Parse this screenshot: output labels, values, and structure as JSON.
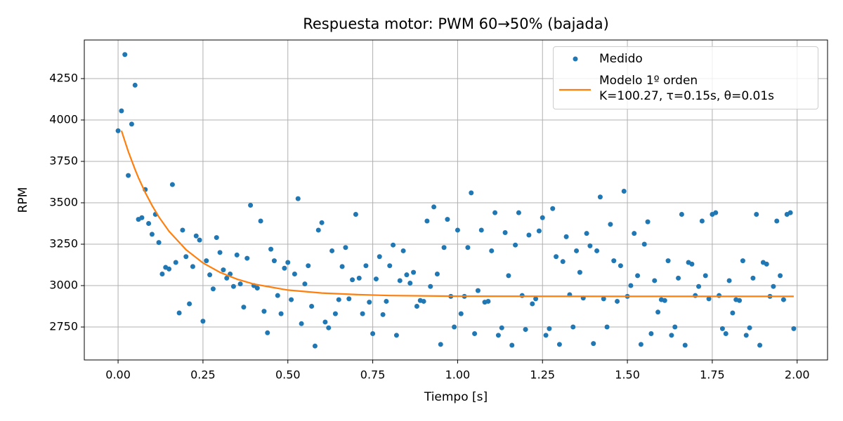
{
  "chart_data": {
    "type": "scatter",
    "title": "Respuesta motor: PWM 60→50% (bajada)",
    "x_label": "Tiempo [s]",
    "y_label": "RPM",
    "xlim": [
      -0.0995,
      2.0895
    ],
    "ylim": [
      2551,
      4483
    ],
    "xticks": [
      {
        "value": 0,
        "label": "0.00"
      },
      {
        "value": 0.25,
        "label": "0.25"
      },
      {
        "value": 0.5,
        "label": "0.50"
      },
      {
        "value": 0.75,
        "label": "0.75"
      },
      {
        "value": 1,
        "label": "1.00"
      },
      {
        "value": 1.25,
        "label": "1.25"
      },
      {
        "value": 1.5,
        "label": "1.50"
      },
      {
        "value": 1.75,
        "label": "1.75"
      },
      {
        "value": 2,
        "label": "2.00"
      }
    ],
    "yticks": [
      2750,
      3000,
      3250,
      3500,
      3750,
      4000,
      4250
    ],
    "grid": true,
    "legend": "upper right",
    "series": [
      {
        "name": "Medido",
        "type": "scatter",
        "color": "#1f77b4",
        "x": [
          0,
          0.01,
          0.02,
          0.03,
          0.04,
          0.05,
          0.06,
          0.07,
          0.08,
          0.09,
          0.1,
          0.11,
          0.12,
          0.13,
          0.14,
          0.15,
          0.16,
          0.17,
          0.18,
          0.19,
          0.2,
          0.21,
          0.22,
          0.23,
          0.24,
          0.25,
          0.26,
          0.27,
          0.28,
          0.29,
          0.3,
          0.31,
          0.32,
          0.33,
          0.34,
          0.35,
          0.36,
          0.37,
          0.38,
          0.39,
          0.4,
          0.41,
          0.42,
          0.43,
          0.44,
          0.45,
          0.46,
          0.47,
          0.48,
          0.49,
          0.5,
          0.51,
          0.52,
          0.53,
          0.54,
          0.55,
          0.56,
          0.57,
          0.58,
          0.59,
          0.6,
          0.61,
          0.62,
          0.63,
          0.64,
          0.65,
          0.66,
          0.67,
          0.68,
          0.69,
          0.7,
          0.71,
          0.72,
          0.73,
          0.74,
          0.75,
          0.76,
          0.77,
          0.78,
          0.79,
          0.8,
          0.81,
          0.82,
          0.83,
          0.84,
          0.85,
          0.86,
          0.87,
          0.88,
          0.89,
          0.9,
          0.91,
          0.92,
          0.93,
          0.94,
          0.95,
          0.96,
          0.97,
          0.98,
          0.99,
          1,
          1.01,
          1.02,
          1.03,
          1.04,
          1.05,
          1.06,
          1.07,
          1.08,
          1.09,
          1.1,
          1.11,
          1.12,
          1.13,
          1.14,
          1.15,
          1.16,
          1.17,
          1.18,
          1.19,
          1.2,
          1.21,
          1.22,
          1.23,
          1.24,
          1.25,
          1.26,
          1.27,
          1.28,
          1.29,
          1.3,
          1.31,
          1.32,
          1.33,
          1.34,
          1.35,
          1.36,
          1.37,
          1.38,
          1.39,
          1.4,
          1.41,
          1.42,
          1.43,
          1.44,
          1.45,
          1.46,
          1.47,
          1.48,
          1.49,
          1.5,
          1.51,
          1.52,
          1.53,
          1.54,
          1.55,
          1.56,
          1.57,
          1.58,
          1.59,
          1.6,
          1.61,
          1.62,
          1.63,
          1.64,
          1.65,
          1.66,
          1.67,
          1.68,
          1.69,
          1.7,
          1.71,
          1.72,
          1.73,
          1.74,
          1.75,
          1.76,
          1.77,
          1.78,
          1.79,
          1.8,
          1.81,
          1.82,
          1.83,
          1.84,
          1.85,
          1.86,
          1.87,
          1.88,
          1.89,
          1.9,
          1.91,
          1.92,
          1.93,
          1.94,
          1.95,
          1.96,
          1.97,
          1.98,
          1.99
        ],
        "values": [
          3935,
          4055,
          4395,
          3665,
          3975,
          4210,
          3400,
          3410,
          3580,
          3375,
          3310,
          3430,
          3260,
          3070,
          3110,
          3100,
          3610,
          3140,
          2835,
          3335,
          3175,
          2890,
          3115,
          3300,
          3275,
          2785,
          3150,
          3065,
          2980,
          3290,
          3200,
          3095,
          3045,
          3070,
          2995,
          3185,
          3010,
          2870,
          3165,
          3485,
          3000,
          2985,
          3390,
          2845,
          2715,
          3220,
          3150,
          2940,
          2830,
          3105,
          3140,
          2915,
          3070,
          3525,
          2770,
          3010,
          3120,
          2875,
          2635,
          3335,
          3380,
          2780,
          2745,
          3210,
          2830,
          2915,
          3115,
          3230,
          2920,
          3035,
          3430,
          3045,
          2830,
          3120,
          2900,
          2710,
          3040,
          3175,
          2825,
          2905,
          3120,
          3245,
          2700,
          3030,
          3210,
          3065,
          3015,
          3080,
          2875,
          2910,
          2905,
          3390,
          2995,
          3475,
          3070,
          2645,
          3230,
          3400,
          2935,
          2750,
          3335,
          2830,
          2935,
          3230,
          3560,
          2710,
          2970,
          3335,
          2900,
          2905,
          3210,
          3440,
          2700,
          2745,
          3320,
          3060,
          2640,
          3245,
          3440,
          2940,
          2735,
          3305,
          2890,
          2920,
          3330,
          3410,
          2700,
          2740,
          3465,
          3175,
          2645,
          3145,
          3295,
          2945,
          2750,
          3210,
          3080,
          2925,
          3315,
          3240,
          2650,
          3210,
          3535,
          2920,
          2750,
          3370,
          3150,
          2905,
          3120,
          3570,
          2935,
          3000,
          3315,
          3060,
          2645,
          3250,
          3385,
          2710,
          3030,
          2840,
          2915,
          2910,
          3150,
          2700,
          2750,
          3045,
          3430,
          2640,
          3140,
          3130,
          2940,
          2995,
          3390,
          3060,
          2920,
          3430,
          3440,
          2940,
          2740,
          2710,
          3030,
          2835,
          2915,
          2910,
          3150,
          2700,
          2745,
          3045,
          3430,
          2640,
          3140,
          3130,
          2935,
          2995,
          3390,
          3060,
          2915,
          3430,
          3440,
          2740
        ]
      },
      {
        "name": "Modelo 1º orden\nK=100.27, τ=0.15s, θ=0.01s",
        "type": "line",
        "color": "#ff7f0e",
        "x": [
          0.01,
          0.02,
          0.03,
          0.05,
          0.06,
          0.08,
          0.1,
          0.12,
          0.15,
          0.2,
          0.25,
          0.3,
          0.35,
          0.4,
          0.5,
          0.6,
          0.7,
          0.8,
          1,
          1.5,
          1.99
        ],
        "values": [
          3935,
          3872,
          3810,
          3701,
          3651,
          3562,
          3484,
          3415,
          3328,
          3217,
          3137,
          3080,
          3039,
          3009,
          2973,
          2955,
          2946,
          2940,
          2936,
          2935,
          2935
        ]
      }
    ]
  }
}
